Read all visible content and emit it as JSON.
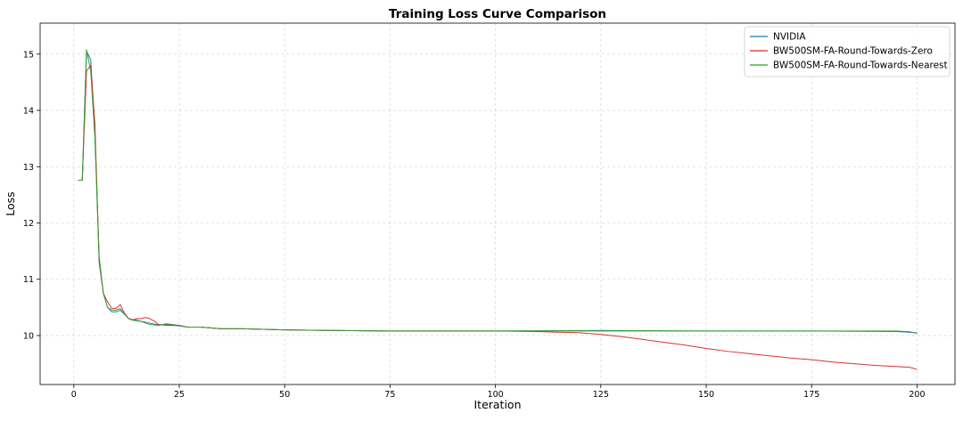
{
  "chart_data": {
    "type": "line",
    "title": "Training Loss Curve Comparison",
    "xlabel": "Iteration",
    "ylabel": "Loss",
    "xlim": [
      -8,
      209
    ],
    "ylim": [
      9.13,
      15.55
    ],
    "xticks": [
      0,
      25,
      50,
      75,
      100,
      125,
      150,
      175,
      200
    ],
    "yticks": [
      10,
      11,
      12,
      13,
      14,
      15
    ],
    "grid": true,
    "legend_position": "top-right",
    "colors": {
      "NVIDIA": "#1f77b4",
      "zero": "#d62728",
      "nearest": "#2ca02c"
    },
    "series": [
      {
        "name": "NVIDIA",
        "color": "#1f77b4",
        "points": [
          [
            1,
            12.76
          ],
          [
            2,
            12.76
          ],
          [
            3,
            15.05
          ],
          [
            4,
            14.9
          ],
          [
            5,
            13.6
          ],
          [
            6,
            11.3
          ],
          [
            7,
            10.75
          ],
          [
            8,
            10.5
          ],
          [
            9,
            10.42
          ],
          [
            10,
            10.42
          ],
          [
            11,
            10.45
          ],
          [
            12,
            10.38
          ],
          [
            13,
            10.3
          ],
          [
            14,
            10.28
          ],
          [
            15,
            10.27
          ],
          [
            16,
            10.25
          ],
          [
            17,
            10.24
          ],
          [
            18,
            10.22
          ],
          [
            20,
            10.19
          ],
          [
            22,
            10.2
          ],
          [
            25,
            10.17
          ],
          [
            27,
            10.15
          ],
          [
            30,
            10.15
          ],
          [
            35,
            10.12
          ],
          [
            40,
            10.12
          ],
          [
            50,
            10.1
          ],
          [
            60,
            10.09
          ],
          [
            75,
            10.08
          ],
          [
            100,
            10.08
          ],
          [
            125,
            10.08
          ],
          [
            150,
            10.08
          ],
          [
            175,
            10.08
          ],
          [
            195,
            10.07
          ],
          [
            198,
            10.06
          ],
          [
            200,
            10.05
          ]
        ]
      },
      {
        "name": "BW500SM-FA-Round-Towards-Zero",
        "color": "#d62728",
        "points": [
          [
            1,
            12.76
          ],
          [
            2,
            12.76
          ],
          [
            3,
            14.7
          ],
          [
            4,
            14.8
          ],
          [
            5,
            13.75
          ],
          [
            6,
            11.35
          ],
          [
            7,
            10.75
          ],
          [
            8,
            10.6
          ],
          [
            9,
            10.48
          ],
          [
            10,
            10.48
          ],
          [
            11,
            10.55
          ],
          [
            12,
            10.4
          ],
          [
            13,
            10.3
          ],
          [
            14,
            10.28
          ],
          [
            15,
            10.3
          ],
          [
            16,
            10.3
          ],
          [
            17,
            10.32
          ],
          [
            18,
            10.3
          ],
          [
            19,
            10.26
          ],
          [
            20,
            10.2
          ],
          [
            22,
            10.18
          ],
          [
            25,
            10.18
          ],
          [
            27,
            10.15
          ],
          [
            30,
            10.15
          ],
          [
            35,
            10.12
          ],
          [
            40,
            10.12
          ],
          [
            50,
            10.1
          ],
          [
            60,
            10.09
          ],
          [
            75,
            10.08
          ],
          [
            100,
            10.08
          ],
          [
            110,
            10.07
          ],
          [
            115,
            10.06
          ],
          [
            120,
            10.05
          ],
          [
            125,
            10.02
          ],
          [
            130,
            9.98
          ],
          [
            135,
            9.93
          ],
          [
            140,
            9.88
          ],
          [
            145,
            9.83
          ],
          [
            150,
            9.77
          ],
          [
            155,
            9.72
          ],
          [
            160,
            9.68
          ],
          [
            165,
            9.64
          ],
          [
            170,
            9.6
          ],
          [
            175,
            9.57
          ],
          [
            180,
            9.53
          ],
          [
            185,
            9.5
          ],
          [
            190,
            9.47
          ],
          [
            195,
            9.45
          ],
          [
            197,
            9.44
          ],
          [
            198,
            9.44
          ],
          [
            200,
            9.4
          ]
        ]
      },
      {
        "name": "BW500SM-FA-Round-Towards-Nearest",
        "color": "#2ca02c",
        "points": [
          [
            1,
            12.76
          ],
          [
            2,
            12.76
          ],
          [
            3,
            15.08
          ],
          [
            4,
            14.7
          ],
          [
            5,
            13.5
          ],
          [
            6,
            11.4
          ],
          [
            7,
            10.75
          ],
          [
            8,
            10.5
          ],
          [
            9,
            10.45
          ],
          [
            10,
            10.45
          ],
          [
            11,
            10.48
          ],
          [
            12,
            10.38
          ],
          [
            13,
            10.3
          ],
          [
            14,
            10.27
          ],
          [
            15,
            10.26
          ],
          [
            16,
            10.25
          ],
          [
            17,
            10.22
          ],
          [
            18,
            10.2
          ],
          [
            20,
            10.18
          ],
          [
            22,
            10.21
          ],
          [
            25,
            10.18
          ],
          [
            27,
            10.15
          ],
          [
            30,
            10.15
          ],
          [
            35,
            10.12
          ],
          [
            40,
            10.12
          ],
          [
            50,
            10.1
          ],
          [
            60,
            10.09
          ],
          [
            75,
            10.08
          ],
          [
            100,
            10.08
          ],
          [
            125,
            10.09
          ],
          [
            150,
            10.08
          ],
          [
            175,
            10.08
          ],
          [
            195,
            10.08
          ],
          [
            198,
            10.07
          ],
          [
            200,
            10.04
          ]
        ]
      }
    ]
  }
}
